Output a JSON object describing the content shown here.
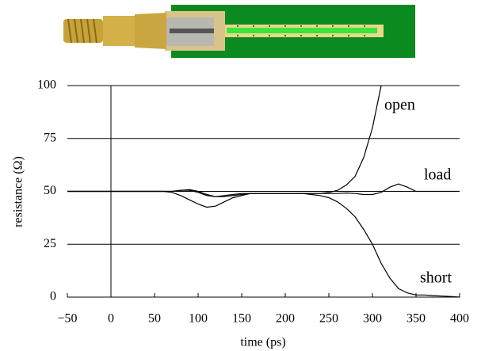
{
  "chart_data": {
    "type": "line",
    "xlabel": "time (ps)",
    "ylabel": "resistance (Ω)",
    "x": [
      -50,
      -40,
      -30,
      -20,
      -10,
      0,
      10,
      20,
      30,
      40,
      50,
      60,
      70,
      80,
      90,
      100,
      110,
      120,
      130,
      140,
      150,
      160,
      170,
      180,
      190,
      200,
      210,
      220,
      230,
      240,
      250,
      260,
      270,
      280,
      290,
      300,
      310,
      320,
      330,
      340,
      350,
      360,
      370,
      380,
      390,
      400
    ],
    "series": [
      {
        "name": "open",
        "color": "#000000",
        "values": [
          50,
          50,
          50,
          50,
          50,
          50,
          50,
          50,
          50,
          50,
          50,
          50,
          50,
          50.5,
          50.8,
          50,
          48.5,
          47.5,
          47.5,
          48,
          48.5,
          49,
          49,
          49,
          49,
          49,
          49,
          49,
          49,
          49,
          49.5,
          50.5,
          53,
          57,
          66,
          80,
          100,
          null,
          null,
          null,
          null,
          null,
          null,
          null,
          null,
          null
        ]
      },
      {
        "name": "load",
        "color": "#000000",
        "values": [
          50,
          50,
          50,
          50,
          50,
          50,
          50,
          50,
          50,
          50,
          50,
          50,
          49.5,
          48,
          46,
          44,
          42.5,
          43,
          45,
          47,
          48,
          49,
          49,
          49,
          49,
          49,
          49,
          49,
          49,
          49,
          49,
          49,
          49.2,
          49,
          48.5,
          48.5,
          49.5,
          52,
          53.5,
          52,
          50,
          50,
          50,
          50,
          50,
          50
        ]
      },
      {
        "name": "short",
        "color": "#000000",
        "values": [
          50,
          50,
          50,
          50,
          50,
          50,
          50,
          50,
          50,
          50,
          50,
          50,
          50,
          50.5,
          50.5,
          49.5,
          48,
          47.5,
          48,
          48.5,
          49,
          49,
          49,
          49,
          49,
          49,
          49,
          49,
          48.5,
          48,
          47,
          45,
          42,
          38,
          32,
          25,
          16,
          9,
          4,
          2,
          1,
          1,
          0.7,
          0.5,
          0.3,
          0
        ]
      }
    ],
    "xlim": [
      -50,
      400
    ],
    "xticks": [
      {
        "value": -50,
        "label": "−50"
      },
      0,
      50,
      100,
      150,
      200,
      250,
      300,
      350,
      400
    ],
    "ylim": [
      0,
      100
    ],
    "yticks": [
      0,
      25,
      50,
      75,
      100
    ],
    "grid": true
  }
}
